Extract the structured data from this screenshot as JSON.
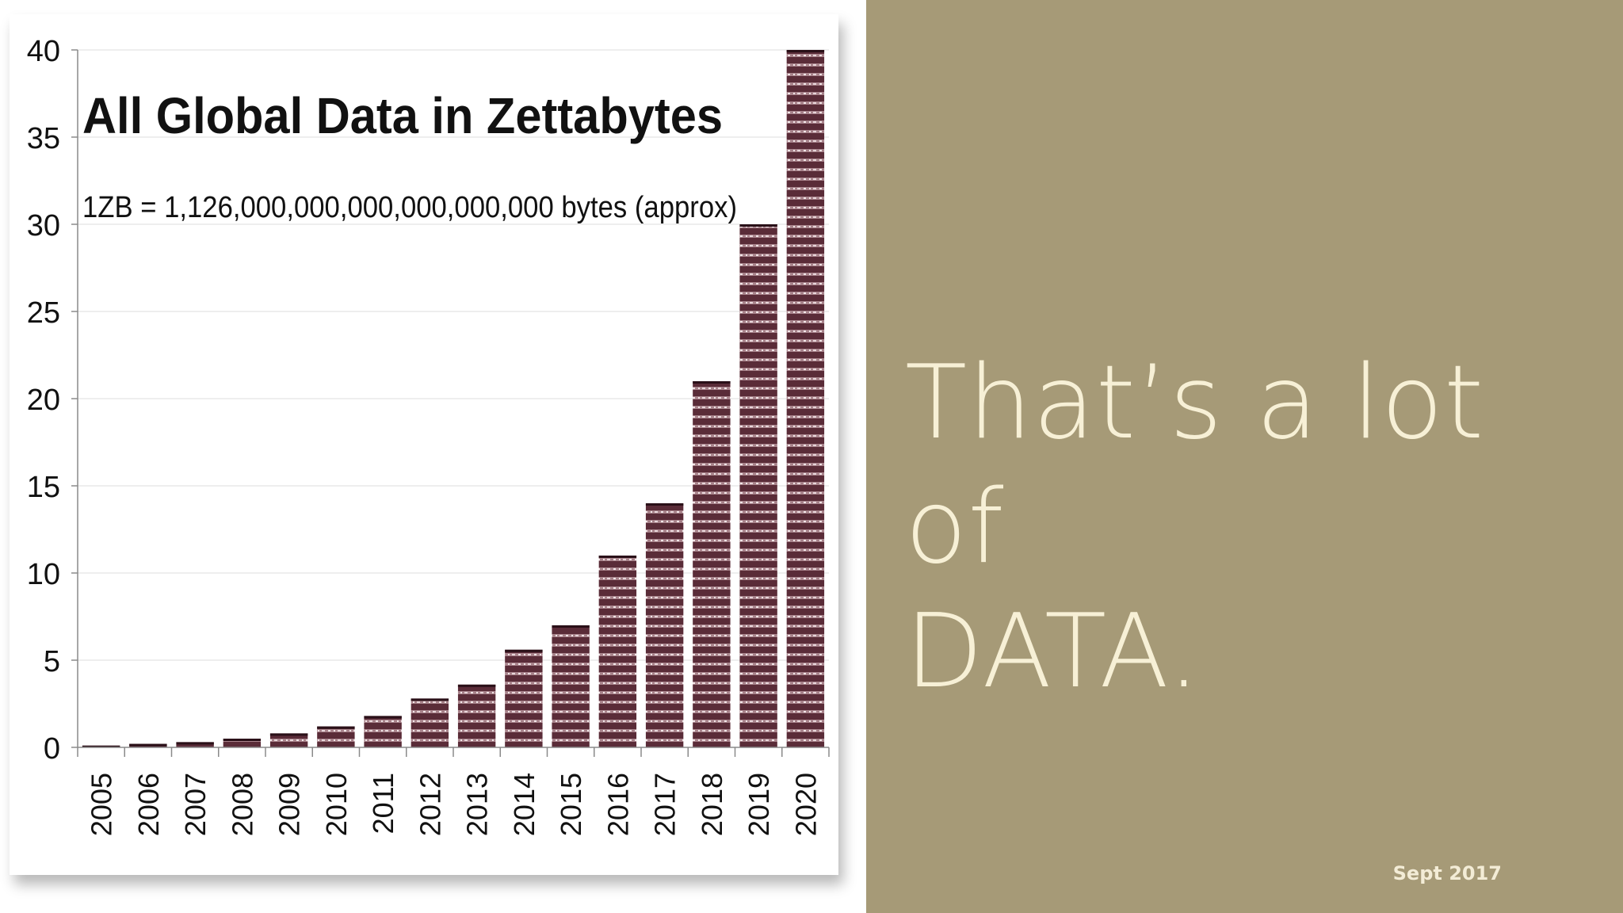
{
  "chart_data": {
    "type": "bar",
    "title": "All Global Data in Zettabytes",
    "subtitle": "1ZB = 1,126,000,000,000,000,000,000  bytes (approx)",
    "xlabel": "",
    "ylabel": "",
    "categories": [
      "2005",
      "2006",
      "2007",
      "2008",
      "2009",
      "2010",
      "2011",
      "2012",
      "2013",
      "2014",
      "2015",
      "2016",
      "2017",
      "2018",
      "2019",
      "2020"
    ],
    "values": [
      0.1,
      0.2,
      0.3,
      0.5,
      0.8,
      1.2,
      1.8,
      2.8,
      3.6,
      5.6,
      7.0,
      11.0,
      14.0,
      21.0,
      30.0,
      40.0
    ],
    "ylim": [
      0,
      40
    ],
    "yticks": [
      0,
      5,
      10,
      15,
      20,
      25,
      30,
      35,
      40
    ],
    "grid": true,
    "legend": "none",
    "bar_color": "#6b3a46",
    "bar_stripe_color": "#b7959b"
  },
  "panel": {
    "headline_line1": "That’s a lot of",
    "headline_line2": "DATA.",
    "date": "Sept 2017",
    "background_color": "#a69a77",
    "text_color": "#f7f0d6"
  }
}
